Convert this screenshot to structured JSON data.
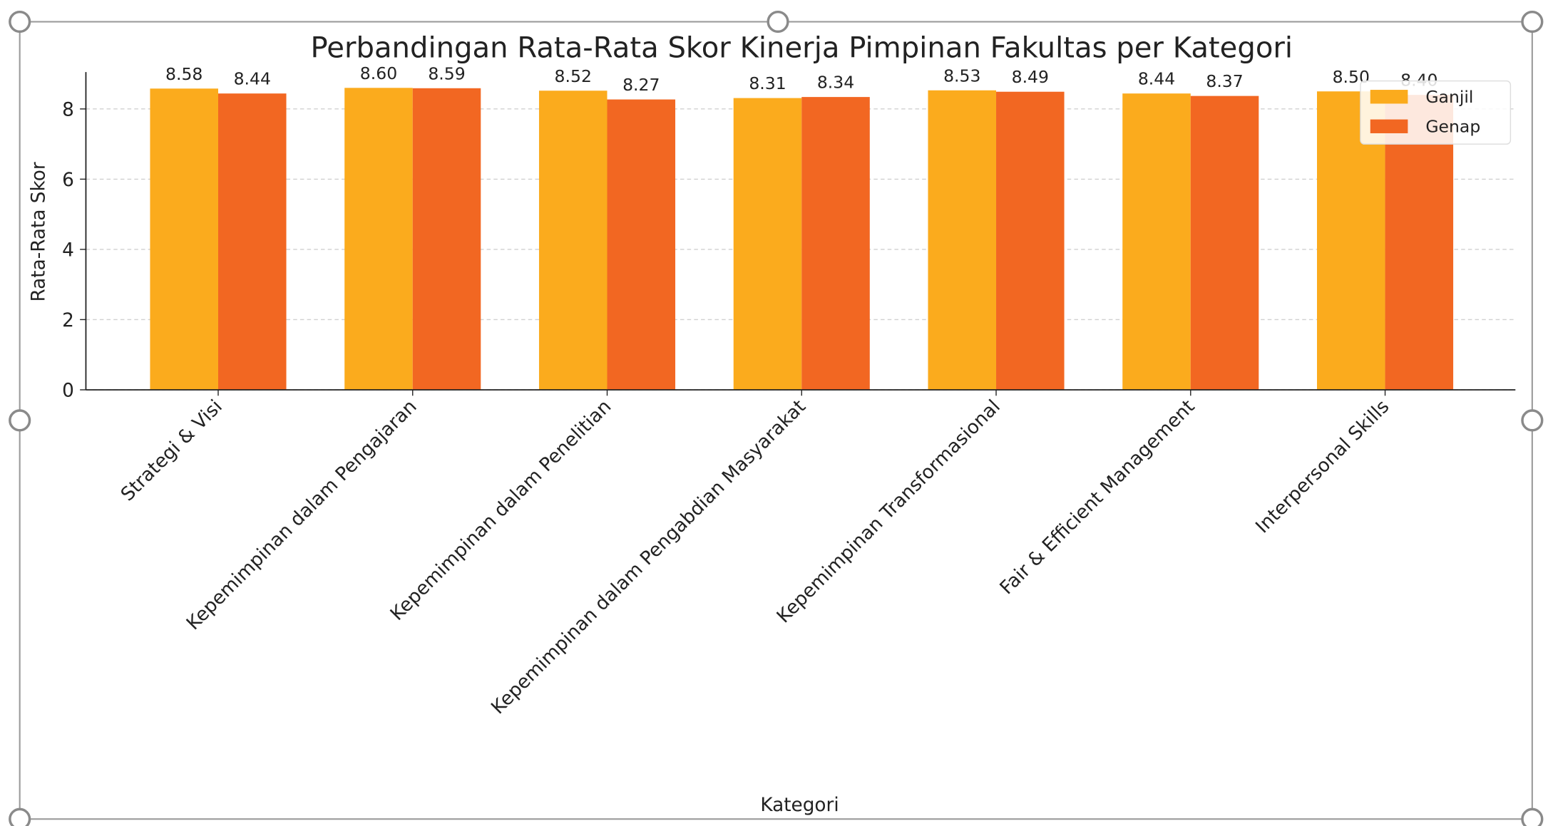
{
  "chart_data": {
    "type": "bar",
    "title": "Perbandingan Rata-Rata Skor Kinerja Pimpinan Fakultas per Kategori",
    "x_label": "Kategori",
    "y_label": "Rata-Rata Skor",
    "categories": [
      "Strategi & Visi",
      "Kepemimpinan dalam Pengajaran",
      "Kepemimpinan dalam Penelitian",
      "Kepemimpinan dalam Pengabdian Masyarakat",
      "Kepemimpinan Transformasional",
      "Fair & Efficient Management",
      "Interpersonal Skills"
    ],
    "series": [
      {
        "name": "Ganjil",
        "color": "#fbab1d",
        "values": [
          8.58,
          8.6,
          8.52,
          8.31,
          8.53,
          8.44,
          8.5
        ],
        "value_labels": [
          "8.58",
          "8.60",
          "8.52",
          "8.31",
          "8.53",
          "8.44",
          "8.50"
        ]
      },
      {
        "name": "Genap",
        "color": "#f26722",
        "values": [
          8.44,
          8.59,
          8.27,
          8.34,
          8.49,
          8.37,
          8.4
        ],
        "value_labels": [
          "8.44",
          "8.59",
          "8.27",
          "8.34",
          "8.49",
          "8.37",
          "8.40"
        ]
      }
    ],
    "ylim": [
      0,
      9.05
    ],
    "yticks": [
      0,
      2,
      4,
      6,
      8
    ],
    "grid": true,
    "legend": "upper right"
  }
}
